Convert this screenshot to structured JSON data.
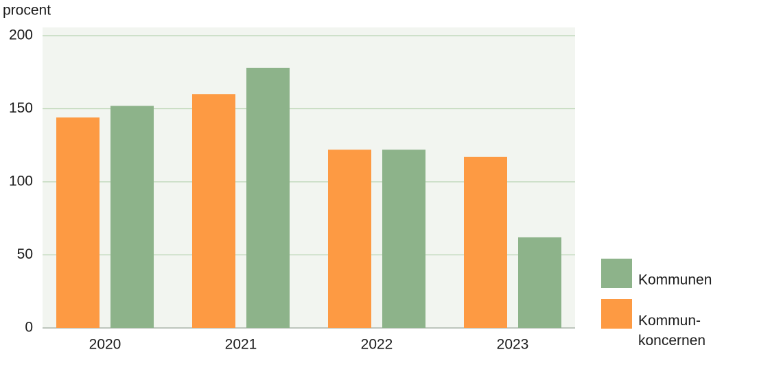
{
  "chart_data": {
    "type": "bar",
    "y_label": "procent",
    "categories": [
      "2020",
      "2021",
      "2022",
      "2023"
    ],
    "series": [
      {
        "name": "Kommun-\nkoncernen",
        "color": "#fd9a43",
        "values": [
          144,
          160,
          122,
          117
        ]
      },
      {
        "name": "Kommunen",
        "color": "#8db38a",
        "values": [
          152,
          178,
          122,
          62
        ]
      }
    ],
    "ylim": [
      0,
      200
    ],
    "yticks": [
      0,
      50,
      100,
      150,
      200
    ],
    "grid": true
  }
}
